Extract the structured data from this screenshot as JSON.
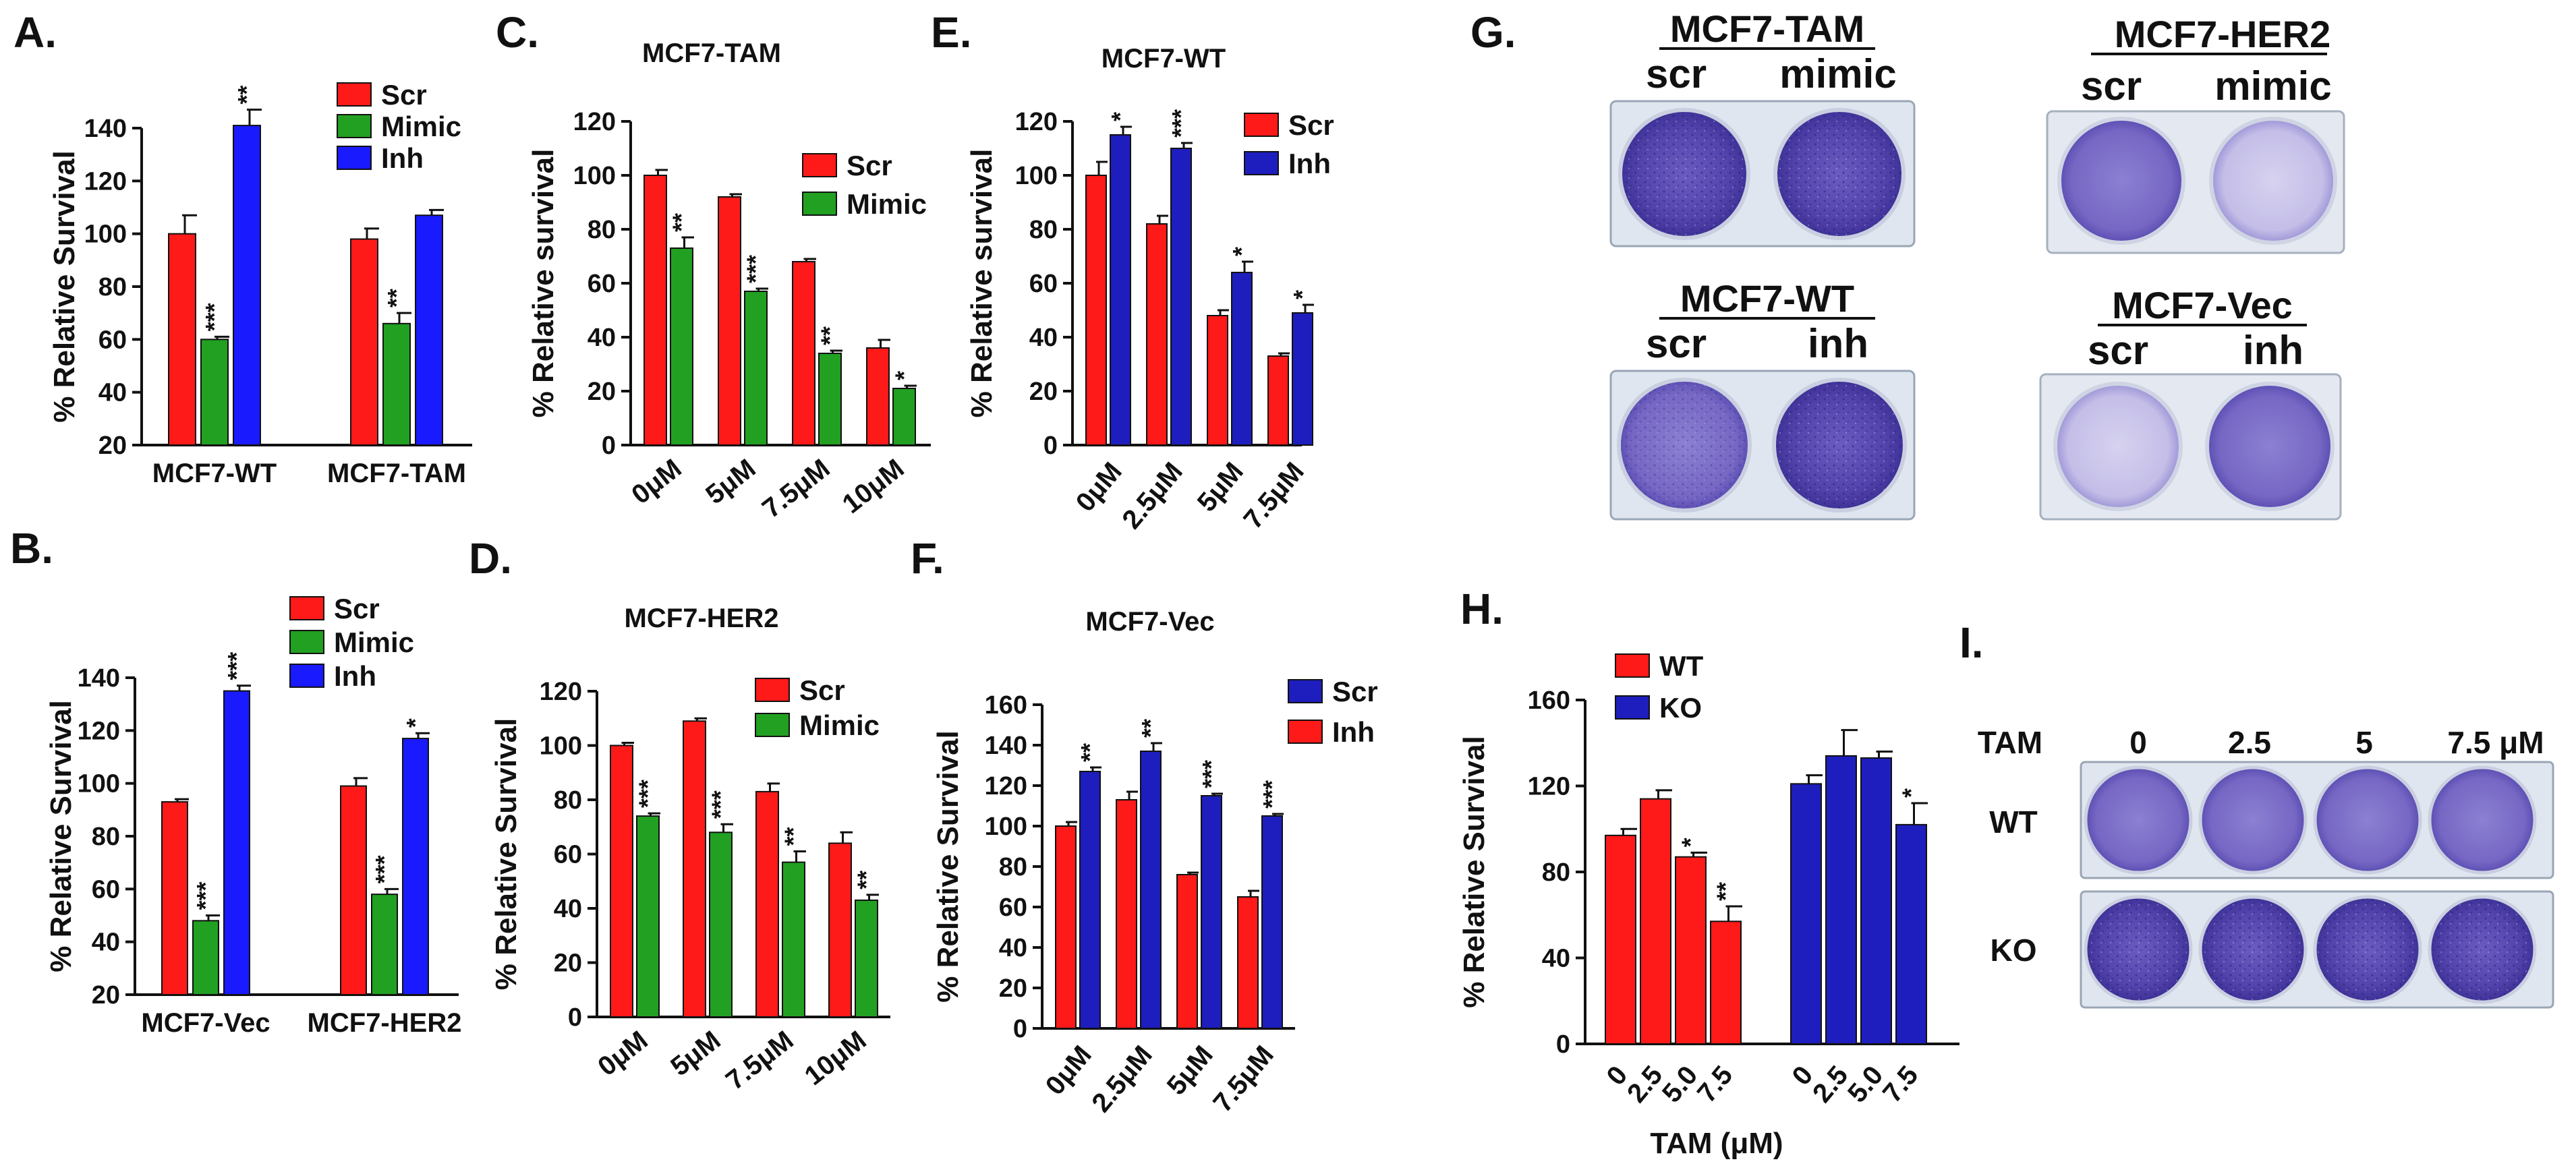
{
  "colors": {
    "red": "#ff1a1a",
    "green": "#22a022",
    "blue": "#1a1aff",
    "navy": "#1e1ebe",
    "ink": "#111111",
    "plate_stain": "#5a49b4",
    "plate_light": "#b9b3e2"
  },
  "panel_letters": {
    "a": "A.",
    "b": "B.",
    "c": "C.",
    "d": "D.",
    "e": "E.",
    "f": "F.",
    "g": "G.",
    "h": "H.",
    "i": "I."
  },
  "chart_data": [
    {
      "id": "A",
      "type": "bar",
      "title": "",
      "ylabel": "% Relative Survival",
      "ylim": [
        20,
        140
      ],
      "yticks": [
        20,
        40,
        60,
        80,
        100,
        120,
        140
      ],
      "categories": [
        "MCF7-WT",
        "MCF7-TAM"
      ],
      "series": [
        {
          "name": "Scr",
          "color": "red",
          "values": [
            100,
            98
          ],
          "errors": [
            7,
            4
          ],
          "sig": [
            "",
            ""
          ]
        },
        {
          "name": "Mimic",
          "color": "green",
          "values": [
            60,
            66
          ],
          "errors": [
            1,
            4
          ],
          "sig": [
            "***",
            "**"
          ]
        },
        {
          "name": "Inh",
          "color": "blue",
          "values": [
            141,
            107
          ],
          "errors": [
            6,
            2
          ],
          "sig": [
            "**",
            ""
          ]
        }
      ]
    },
    {
      "id": "B",
      "type": "bar",
      "title": "",
      "ylabel": "% Relative Survival",
      "ylim": [
        20,
        140
      ],
      "yticks": [
        20,
        40,
        60,
        80,
        100,
        120,
        140
      ],
      "categories": [
        "MCF7-Vec",
        "MCF7-HER2"
      ],
      "series": [
        {
          "name": "Scr",
          "color": "red",
          "values": [
            93,
            99
          ],
          "errors": [
            1,
            3
          ],
          "sig": [
            "",
            ""
          ]
        },
        {
          "name": "Mimic",
          "color": "green",
          "values": [
            48,
            58
          ],
          "errors": [
            2,
            2
          ],
          "sig": [
            "***",
            "***"
          ]
        },
        {
          "name": "Inh",
          "color": "blue",
          "values": [
            135,
            117
          ],
          "errors": [
            2,
            2
          ],
          "sig": [
            "***",
            "*"
          ]
        }
      ]
    },
    {
      "id": "C",
      "type": "bar",
      "title": "MCF7-TAM",
      "ylabel": "% Relative survival",
      "ylim": [
        0,
        120
      ],
      "yticks": [
        0,
        20,
        40,
        60,
        80,
        100,
        120
      ],
      "categories": [
        "0μM",
        "5μM",
        "7.5μM",
        "10μM"
      ],
      "series": [
        {
          "name": "Scr",
          "color": "red",
          "values": [
            100,
            92,
            68,
            36
          ],
          "errors": [
            2,
            1,
            1,
            3
          ],
          "sig": [
            "",
            "",
            "",
            ""
          ]
        },
        {
          "name": "Mimic",
          "color": "green",
          "values": [
            73,
            57,
            34,
            21
          ],
          "errors": [
            4,
            1,
            1,
            1
          ],
          "sig": [
            "**",
            "***",
            "**",
            "*"
          ]
        }
      ]
    },
    {
      "id": "D",
      "type": "bar",
      "title": "MCF7-HER2",
      "ylabel": "% Relative Survival",
      "ylim": [
        0,
        120
      ],
      "yticks": [
        0,
        20,
        40,
        60,
        80,
        100,
        120
      ],
      "categories": [
        "0μM",
        "5μM",
        "7.5μM",
        "10μM"
      ],
      "series": [
        {
          "name": "Scr",
          "color": "red",
          "values": [
            100,
            109,
            83,
            64
          ],
          "errors": [
            1,
            1,
            3,
            4
          ],
          "sig": [
            "",
            "",
            "",
            ""
          ]
        },
        {
          "name": "Mimic",
          "color": "green",
          "values": [
            74,
            68,
            57,
            43
          ],
          "errors": [
            1,
            3,
            4,
            2
          ],
          "sig": [
            "***",
            "***",
            "**",
            "**"
          ]
        }
      ]
    },
    {
      "id": "E",
      "type": "bar",
      "title": "MCF7-WT",
      "ylabel": "% Relative survival",
      "ylim": [
        0,
        120
      ],
      "yticks": [
        0,
        20,
        40,
        60,
        80,
        100,
        120
      ],
      "categories": [
        "0μM",
        "2.5μM",
        "5μM",
        "7.5μM"
      ],
      "series": [
        {
          "name": "Scr",
          "color": "red",
          "values": [
            100,
            82,
            48,
            33
          ],
          "errors": [
            5,
            3,
            2,
            1
          ],
          "sig": [
            "",
            "",
            "",
            ""
          ]
        },
        {
          "name": "Inh",
          "color": "navy",
          "values": [
            115,
            110,
            64,
            49
          ],
          "errors": [
            3,
            2,
            4,
            3
          ],
          "sig": [
            "*",
            "***",
            "*",
            "*"
          ]
        }
      ]
    },
    {
      "id": "F",
      "type": "bar",
      "title": "MCF7-Vec",
      "ylabel": "% Relative Survival",
      "ylim": [
        0,
        160
      ],
      "yticks": [
        0,
        20,
        40,
        60,
        80,
        100,
        120,
        140,
        160
      ],
      "categories": [
        "0μM",
        "2.5μM",
        "5μM",
        "7.5μM"
      ],
      "series": [
        {
          "name": "Inh",
          "color": "red",
          "values": [
            100,
            113,
            76,
            65
          ],
          "errors": [
            2,
            4,
            1,
            3
          ],
          "sig": [
            "",
            "",
            "",
            ""
          ]
        },
        {
          "name": "Scr",
          "color": "navy",
          "values": [
            127,
            137,
            115,
            105
          ],
          "errors": [
            2,
            4,
            1,
            1
          ],
          "sig": [
            "**",
            "**",
            "***",
            "***"
          ]
        }
      ],
      "legend_order": [
        1,
        0
      ]
    },
    {
      "id": "H",
      "type": "bar",
      "title": "",
      "ylabel": "% Relative Survival",
      "xlabel": "TAM (μM)",
      "ylim": [
        0,
        160
      ],
      "yticks": [
        0,
        40,
        80,
        120,
        160
      ],
      "series": [
        {
          "name": "WT",
          "color": "red",
          "x": [
            "0",
            "2.5",
            "5.0",
            "7.5"
          ],
          "values": [
            97,
            114,
            87,
            57
          ],
          "errors": [
            3,
            4,
            2,
            7
          ],
          "sig": [
            "",
            "",
            "*",
            "**"
          ]
        },
        {
          "name": "KO",
          "color": "navy",
          "x": [
            "0",
            "2.5",
            "5.0",
            "7.5"
          ],
          "values": [
            121,
            134,
            133,
            102
          ],
          "errors": [
            4,
            12,
            3,
            10
          ],
          "sig": [
            "",
            "",
            "",
            "*"
          ]
        }
      ]
    }
  ],
  "plates_g": [
    {
      "title": "MCF7-TAM",
      "left": "scr",
      "right": "mimic"
    },
    {
      "title": "MCF7-HER2",
      "left": "scr",
      "right": "mimic"
    },
    {
      "title": "MCF7-WT",
      "left": "scr",
      "right": "inh"
    },
    {
      "title": "MCF7-Vec",
      "left": "scr",
      "right": "inh"
    }
  ],
  "plates_i": {
    "tam_label": "TAM",
    "doses": [
      "0",
      "2.5",
      "5",
      "7.5 μM"
    ],
    "rows": [
      "WT",
      "KO"
    ]
  }
}
